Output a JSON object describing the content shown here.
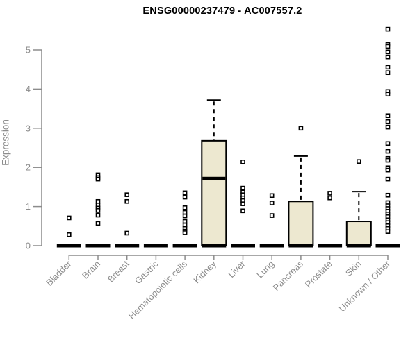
{
  "title": "ENSG00000237479 - AC007557.2",
  "chart_data": {
    "type": "boxplot",
    "title": "ENSG00000237479 - AC007557.2",
    "xlabel": "",
    "ylabel": "Expression",
    "ylim": [
      0,
      5.6
    ],
    "yticks": [
      0,
      1,
      2,
      3,
      4,
      5
    ],
    "grid": false,
    "legend": "none",
    "categories": [
      "Bladder",
      "Brain",
      "Breast",
      "Gastric",
      "Hematopoietic cells",
      "Kidney",
      "Liver",
      "Lung",
      "Pancreas",
      "Prostate",
      "Skin",
      "Unknown / Other"
    ],
    "boxes": [
      {
        "category": "Bladder",
        "q1": 0,
        "median": 0,
        "q3": 0,
        "whisker_low": 0,
        "whisker_high": 0,
        "outliers": [
          0.71,
          0.28
        ]
      },
      {
        "category": "Brain",
        "q1": 0,
        "median": 0,
        "q3": 0,
        "whisker_low": 0,
        "whisker_high": 0,
        "outliers": [
          1.81,
          1.74,
          1.7,
          1.13,
          1.04,
          0.96,
          0.9,
          0.78,
          0.57
        ]
      },
      {
        "category": "Breast",
        "q1": 0,
        "median": 0,
        "q3": 0,
        "whisker_low": 0,
        "whisker_high": 0,
        "outliers": [
          1.3,
          1.13,
          0.32
        ]
      },
      {
        "category": "Gastric",
        "q1": 0,
        "median": 0,
        "q3": 0,
        "whisker_low": 0,
        "whisker_high": 0,
        "outliers": []
      },
      {
        "category": "Hematopoietic cells",
        "q1": 0,
        "median": 0,
        "q3": 0,
        "whisker_low": 0,
        "whisker_high": 0,
        "outliers": [
          1.35,
          1.24,
          0.97,
          0.85,
          0.76,
          0.62,
          0.53,
          0.44,
          0.37,
          0.33
        ]
      },
      {
        "category": "Kidney",
        "q1": 0,
        "median": 1.72,
        "q3": 2.68,
        "whisker_low": 0,
        "whisker_high": 3.72,
        "outliers": []
      },
      {
        "category": "Liver",
        "q1": 0,
        "median": 0,
        "q3": 0,
        "whisker_low": 0,
        "whisker_high": 0,
        "outliers": [
          2.14,
          1.47,
          1.37,
          1.3,
          1.22,
          1.15,
          1.07,
          0.89
        ]
      },
      {
        "category": "Lung",
        "q1": 0,
        "median": 0,
        "q3": 0,
        "whisker_low": 0,
        "whisker_high": 0,
        "outliers": [
          1.28,
          1.09,
          0.77
        ]
      },
      {
        "category": "Pancreas",
        "q1": 0,
        "median": 0,
        "q3": 1.13,
        "whisker_low": 0,
        "whisker_high": 2.29,
        "outliers": [
          3.0
        ]
      },
      {
        "category": "Prostate",
        "q1": 0,
        "median": 0,
        "q3": 0,
        "whisker_low": 0,
        "whisker_high": 0,
        "outliers": [
          1.34,
          1.22
        ]
      },
      {
        "category": "Skin",
        "q1": 0,
        "median": 0,
        "q3": 0.62,
        "whisker_low": 0,
        "whisker_high": 1.38,
        "outliers": [
          2.15
        ]
      },
      {
        "category": "Unknown / Other",
        "q1": 0,
        "median": 0,
        "q3": 0,
        "whisker_low": 0,
        "whisker_high": 0,
        "outliers": [
          5.53,
          5.14,
          5.09,
          4.95,
          4.82,
          4.56,
          4.42,
          3.94,
          3.87,
          3.32,
          3.17,
          3.03,
          2.61,
          2.41,
          2.23,
          2.18,
          1.99,
          1.93,
          1.7,
          1.29,
          1.1,
          1.02,
          0.95,
          0.88,
          0.81,
          0.74,
          0.66,
          0.59,
          0.51,
          0.44,
          0.36
        ]
      }
    ],
    "colors": {
      "box_fill": "#EDE8D0",
      "box_stroke": "#000000",
      "median": "#000000",
      "outlier_stroke": "#000000",
      "axis": "#8C8C8C",
      "tick_label": "#8C8C8C",
      "title": "#000000",
      "background": "#FFFFFF"
    }
  }
}
